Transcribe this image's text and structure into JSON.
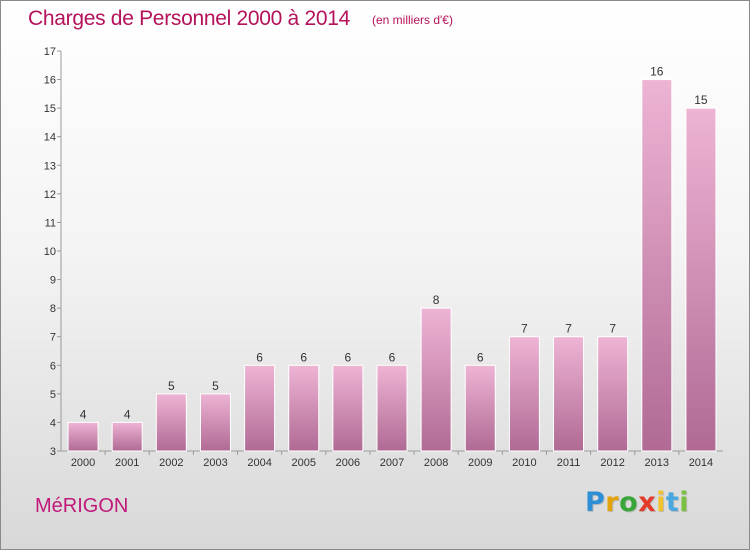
{
  "header": {
    "title": "Charges de Personnel 2000 à 2014",
    "subtitle": "(en milliers d'€)"
  },
  "footer": {
    "commune": "MéRIGON",
    "logo_letters": [
      "P",
      "r",
      "o",
      "x",
      "i",
      "t",
      "i"
    ]
  },
  "colors": {
    "title": "#b4125a",
    "bar_top": "#eeb4d4",
    "bar_bottom": "#b06a94",
    "bar_stroke": "#ffffff",
    "logo": [
      "#2f8fd6",
      "#e2a20a",
      "#3aa63a",
      "#e33a2a",
      "#f2c12e",
      "#49a8e0",
      "#7ac142"
    ]
  },
  "chart_data": {
    "type": "bar",
    "categories": [
      "2000",
      "2001",
      "2002",
      "2003",
      "2004",
      "2005",
      "2006",
      "2007",
      "2008",
      "2009",
      "2010",
      "2011",
      "2012",
      "2013",
      "2014"
    ],
    "values": [
      4,
      4,
      5,
      5,
      6,
      6,
      6,
      6,
      8,
      6,
      7,
      7,
      7,
      16,
      15
    ],
    "data_labels": [
      "4",
      "4",
      "5",
      "5",
      "6",
      "6",
      "6",
      "6",
      "8",
      "6",
      "7",
      "7",
      "7",
      "16",
      "15"
    ],
    "title": "Charges de Personnel 2000 à 2014",
    "subtitle": "(en milliers d'€)",
    "xlabel": "",
    "ylabel": "",
    "ylim": [
      3,
      17
    ],
    "yticks": [
      "3",
      "4",
      "5",
      "6",
      "7",
      "8",
      "9",
      "10",
      "11",
      "12",
      "13",
      "14",
      "15",
      "16",
      "17"
    ],
    "grid": false,
    "legend": "none"
  }
}
